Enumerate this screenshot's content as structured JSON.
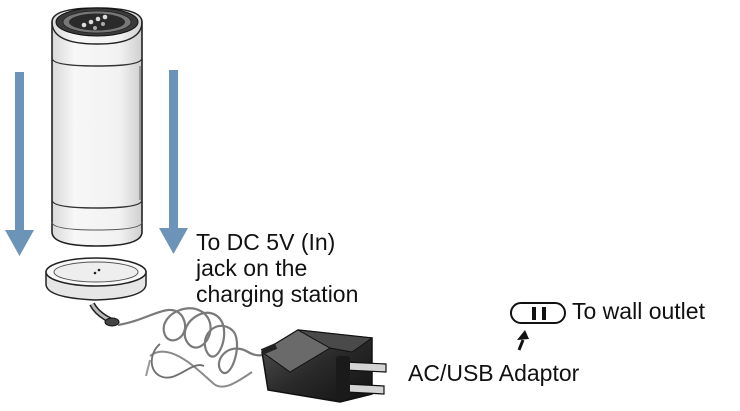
{
  "labels": {
    "dc_jack": [
      "To DC 5V (In)",
      "jack on the",
      "charging station"
    ],
    "adaptor": "AC/USB Adaptor",
    "outlet": "To wall outlet"
  },
  "colors": {
    "arrow": "#6c93b8",
    "line": "#222222",
    "adaptor_body": "#2b2b2b",
    "cable": "#7a7a7a"
  },
  "icons": [
    "down-arrow-icon",
    "wall-outlet-icon",
    "pointer-arrow-icon"
  ]
}
